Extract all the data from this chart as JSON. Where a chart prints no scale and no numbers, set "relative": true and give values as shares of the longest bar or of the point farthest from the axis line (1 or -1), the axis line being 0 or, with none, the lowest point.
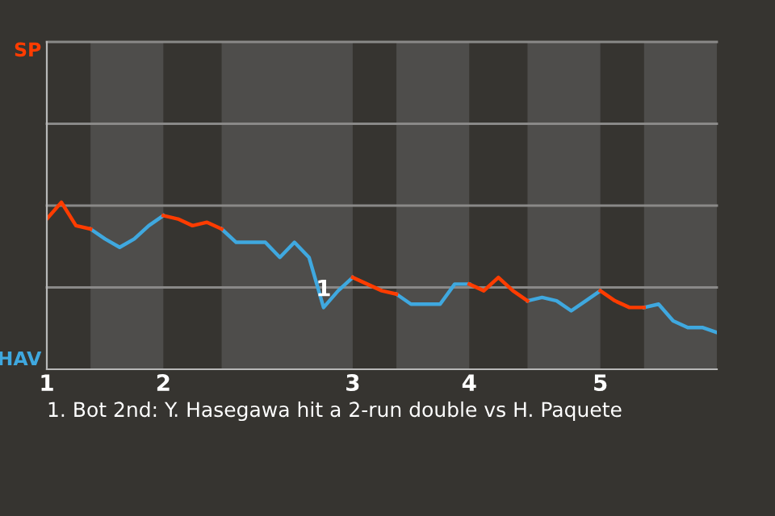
{
  "chart_data": {
    "type": "line",
    "relative": true,
    "categories": [
      "1",
      null,
      null,
      null,
      null,
      null,
      null,
      null,
      "2",
      null,
      null,
      null,
      null,
      null,
      null,
      null,
      null,
      null,
      null,
      null,
      null,
      "3",
      null,
      null,
      null,
      null,
      null,
      null,
      null,
      "4",
      null,
      null,
      null,
      null,
      null,
      null,
      null,
      null,
      "5",
      null,
      null,
      null,
      null,
      null,
      null,
      null,
      null
    ],
    "series": [
      {
        "color": "#3fa8df",
        "values": [
          null,
          null,
          null,
          0.84,
          0.78,
          0.73,
          0.78,
          0.86,
          0.92,
          null,
          null,
          null,
          0.84,
          0.76,
          0.76,
          0.76,
          0.67,
          0.76,
          0.67,
          0.37,
          0.47,
          0.55,
          null,
          null,
          0.45,
          0.39,
          0.39,
          0.39,
          0.51,
          0.51,
          null,
          null,
          null,
          0.41,
          0.43,
          0.41,
          0.35,
          0.41,
          0.47,
          null,
          null,
          0.37,
          0.39,
          0.29,
          0.25,
          0.25,
          0.22
        ]
      },
      {
        "color": "#ff3c00",
        "values": [
          0.9,
          1,
          0.86,
          0.84,
          null,
          null,
          null,
          null,
          0.92,
          0.9,
          0.86,
          0.88,
          0.84,
          null,
          null,
          null,
          null,
          null,
          null,
          null,
          null,
          0.55,
          0.51,
          0.47,
          0.45,
          null,
          null,
          null,
          null,
          0.51,
          0.47,
          0.55,
          0.47,
          0.41,
          null,
          null,
          null,
          null,
          0.47,
          0.41,
          0.37,
          0.37,
          null,
          null,
          null,
          null,
          null
        ]
      }
    ],
    "ylim": [
      0,
      1.96
    ],
    "grid": "y",
    "annotations": [
      {
        "text": "1",
        "y": 0.37
      },
      "SP",
      "HAV",
      "1. Bot 2nd: Y. Hasegawa hit a 2-run double vs H. Paquete"
    ]
  }
}
